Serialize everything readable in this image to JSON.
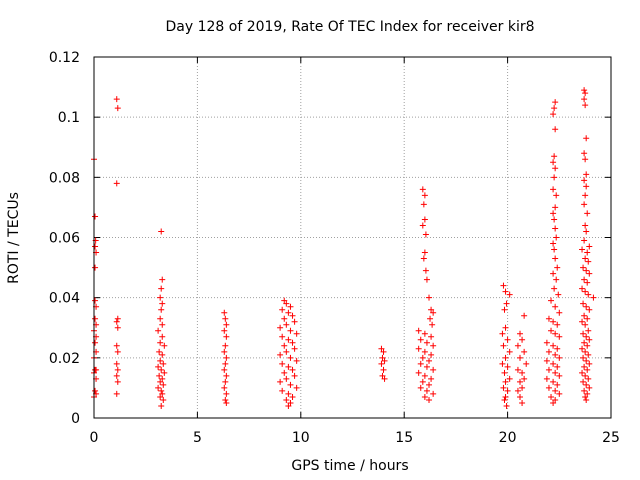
{
  "chart_data": {
    "type": "scatter",
    "title": "Day 128 of 2019, Rate Of TEC Index for receiver kir8",
    "xlabel": "GPS time / hours",
    "ylabel": "ROTI / TECUs",
    "xlim": [
      0,
      25
    ],
    "ylim": [
      0,
      0.12
    ],
    "xticks": [
      0,
      5,
      10,
      15,
      20,
      25
    ],
    "xtick_labels": [
      "0",
      "5",
      "10",
      "15",
      "20",
      "25"
    ],
    "yticks": [
      0,
      0.02,
      0.04,
      0.06,
      0.08,
      0.1,
      0.12
    ],
    "ytick_labels": [
      "0",
      "0.02",
      "0.04",
      "0.06",
      "0.08",
      "0.1",
      "0.12"
    ],
    "grid": true,
    "marker": "+",
    "marker_color": "#ff0000",
    "series": [
      {
        "name": "ROTI",
        "points": [
          [
            0.0,
            0.086
          ],
          [
            0.05,
            0.067
          ],
          [
            0.08,
            0.059
          ],
          [
            0.05,
            0.057
          ],
          [
            0.1,
            0.055
          ],
          [
            0.05,
            0.05
          ],
          [
            0.05,
            0.039
          ],
          [
            0.1,
            0.037
          ],
          [
            0.05,
            0.033
          ],
          [
            0.1,
            0.031
          ],
          [
            0.0,
            0.029
          ],
          [
            0.1,
            0.027
          ],
          [
            0.05,
            0.025
          ],
          [
            0.1,
            0.022
          ],
          [
            0.0,
            0.02
          ],
          [
            0.05,
            0.016
          ],
          [
            0.1,
            0.016
          ],
          [
            0.0,
            0.015
          ],
          [
            0.1,
            0.013
          ],
          [
            0.05,
            0.009
          ],
          [
            0.1,
            0.008
          ],
          [
            0.0,
            0.007
          ],
          [
            1.1,
            0.106
          ],
          [
            1.15,
            0.103
          ],
          [
            1.1,
            0.078
          ],
          [
            1.15,
            0.033
          ],
          [
            1.1,
            0.032
          ],
          [
            1.15,
            0.03
          ],
          [
            1.1,
            0.024
          ],
          [
            1.15,
            0.022
          ],
          [
            1.1,
            0.018
          ],
          [
            1.15,
            0.016
          ],
          [
            1.1,
            0.014
          ],
          [
            1.15,
            0.012
          ],
          [
            1.1,
            0.008
          ],
          [
            3.25,
            0.062
          ],
          [
            3.3,
            0.046
          ],
          [
            3.25,
            0.043
          ],
          [
            3.2,
            0.04
          ],
          [
            3.3,
            0.038
          ],
          [
            3.25,
            0.036
          ],
          [
            3.2,
            0.033
          ],
          [
            3.3,
            0.031
          ],
          [
            3.1,
            0.029
          ],
          [
            3.3,
            0.027
          ],
          [
            3.2,
            0.025
          ],
          [
            3.4,
            0.024
          ],
          [
            3.15,
            0.022
          ],
          [
            3.3,
            0.021
          ],
          [
            3.2,
            0.019
          ],
          [
            3.35,
            0.018
          ],
          [
            3.1,
            0.017
          ],
          [
            3.25,
            0.016
          ],
          [
            3.4,
            0.015
          ],
          [
            3.15,
            0.014
          ],
          [
            3.3,
            0.013
          ],
          [
            3.2,
            0.012
          ],
          [
            3.35,
            0.011
          ],
          [
            3.1,
            0.01
          ],
          [
            3.25,
            0.009
          ],
          [
            3.3,
            0.008
          ],
          [
            3.2,
            0.007
          ],
          [
            3.35,
            0.006
          ],
          [
            3.25,
            0.004
          ],
          [
            6.3,
            0.035
          ],
          [
            6.35,
            0.033
          ],
          [
            6.4,
            0.031
          ],
          [
            6.3,
            0.029
          ],
          [
            6.4,
            0.027
          ],
          [
            6.35,
            0.024
          ],
          [
            6.3,
            0.022
          ],
          [
            6.4,
            0.02
          ],
          [
            6.35,
            0.018
          ],
          [
            6.3,
            0.016
          ],
          [
            6.4,
            0.014
          ],
          [
            6.35,
            0.012
          ],
          [
            6.3,
            0.01
          ],
          [
            6.4,
            0.008
          ],
          [
            6.35,
            0.006
          ],
          [
            6.4,
            0.005
          ],
          [
            9.2,
            0.039
          ],
          [
            9.3,
            0.038
          ],
          [
            9.5,
            0.037
          ],
          [
            9.1,
            0.036
          ],
          [
            9.4,
            0.035
          ],
          [
            9.6,
            0.034
          ],
          [
            9.2,
            0.033
          ],
          [
            9.7,
            0.032
          ],
          [
            9.3,
            0.031
          ],
          [
            9.0,
            0.03
          ],
          [
            9.5,
            0.029
          ],
          [
            9.8,
            0.028
          ],
          [
            9.1,
            0.027
          ],
          [
            9.4,
            0.026
          ],
          [
            9.6,
            0.025
          ],
          [
            9.2,
            0.024
          ],
          [
            9.7,
            0.023
          ],
          [
            9.3,
            0.022
          ],
          [
            9.0,
            0.021
          ],
          [
            9.5,
            0.02
          ],
          [
            9.8,
            0.019
          ],
          [
            9.1,
            0.018
          ],
          [
            9.4,
            0.017
          ],
          [
            9.6,
            0.016
          ],
          [
            9.2,
            0.015
          ],
          [
            9.7,
            0.014
          ],
          [
            9.3,
            0.013
          ],
          [
            9.0,
            0.012
          ],
          [
            9.5,
            0.011
          ],
          [
            9.8,
            0.01
          ],
          [
            9.1,
            0.009
          ],
          [
            9.4,
            0.008
          ],
          [
            9.6,
            0.007
          ],
          [
            9.3,
            0.006
          ],
          [
            9.5,
            0.005
          ],
          [
            9.4,
            0.004
          ],
          [
            13.9,
            0.023
          ],
          [
            14.0,
            0.022
          ],
          [
            13.95,
            0.02
          ],
          [
            14.05,
            0.019
          ],
          [
            13.9,
            0.018
          ],
          [
            14.0,
            0.016
          ],
          [
            13.95,
            0.014
          ],
          [
            14.05,
            0.013
          ],
          [
            15.9,
            0.076
          ],
          [
            16.0,
            0.074
          ],
          [
            15.95,
            0.071
          ],
          [
            16.0,
            0.066
          ],
          [
            15.9,
            0.064
          ],
          [
            16.05,
            0.061
          ],
          [
            16.0,
            0.055
          ],
          [
            15.95,
            0.053
          ],
          [
            16.05,
            0.049
          ],
          [
            16.1,
            0.046
          ],
          [
            16.2,
            0.04
          ],
          [
            16.3,
            0.036
          ],
          [
            16.4,
            0.035
          ],
          [
            16.25,
            0.033
          ],
          [
            16.35,
            0.031
          ],
          [
            15.7,
            0.029
          ],
          [
            16.0,
            0.028
          ],
          [
            16.3,
            0.027
          ],
          [
            15.8,
            0.026
          ],
          [
            16.1,
            0.025
          ],
          [
            16.4,
            0.024
          ],
          [
            15.7,
            0.023
          ],
          [
            16.0,
            0.022
          ],
          [
            16.3,
            0.021
          ],
          [
            15.9,
            0.02
          ],
          [
            16.2,
            0.019
          ],
          [
            15.8,
            0.018
          ],
          [
            16.1,
            0.017
          ],
          [
            16.4,
            0.016
          ],
          [
            15.7,
            0.015
          ],
          [
            16.0,
            0.014
          ],
          [
            16.3,
            0.013
          ],
          [
            15.9,
            0.012
          ],
          [
            16.2,
            0.011
          ],
          [
            15.8,
            0.01
          ],
          [
            16.1,
            0.009
          ],
          [
            16.4,
            0.008
          ],
          [
            16.0,
            0.007
          ],
          [
            16.2,
            0.006
          ],
          [
            19.8,
            0.044
          ],
          [
            19.9,
            0.042
          ],
          [
            20.1,
            0.041
          ],
          [
            19.95,
            0.038
          ],
          [
            19.85,
            0.036
          ],
          [
            19.9,
            0.03
          ],
          [
            19.75,
            0.028
          ],
          [
            20.0,
            0.026
          ],
          [
            19.8,
            0.024
          ],
          [
            20.1,
            0.022
          ],
          [
            19.9,
            0.02
          ],
          [
            19.75,
            0.018
          ],
          [
            20.0,
            0.017
          ],
          [
            19.85,
            0.015
          ],
          [
            20.1,
            0.013
          ],
          [
            19.9,
            0.012
          ],
          [
            19.8,
            0.01
          ],
          [
            20.0,
            0.009
          ],
          [
            19.9,
            0.007
          ],
          [
            19.85,
            0.006
          ],
          [
            19.95,
            0.004
          ],
          [
            20.8,
            0.034
          ],
          [
            20.6,
            0.028
          ],
          [
            20.7,
            0.026
          ],
          [
            20.5,
            0.024
          ],
          [
            20.8,
            0.022
          ],
          [
            20.6,
            0.02
          ],
          [
            20.9,
            0.018
          ],
          [
            20.5,
            0.016
          ],
          [
            20.7,
            0.015
          ],
          [
            20.8,
            0.013
          ],
          [
            20.6,
            0.012
          ],
          [
            20.7,
            0.01
          ],
          [
            20.5,
            0.009
          ],
          [
            20.6,
            0.007
          ],
          [
            20.7,
            0.005
          ],
          [
            22.3,
            0.105
          ],
          [
            22.25,
            0.103
          ],
          [
            22.2,
            0.101
          ],
          [
            22.3,
            0.096
          ],
          [
            22.25,
            0.087
          ],
          [
            22.2,
            0.085
          ],
          [
            22.3,
            0.083
          ],
          [
            22.25,
            0.08
          ],
          [
            22.2,
            0.076
          ],
          [
            22.35,
            0.074
          ],
          [
            22.3,
            0.07
          ],
          [
            22.2,
            0.068
          ],
          [
            22.25,
            0.066
          ],
          [
            22.3,
            0.063
          ],
          [
            22.35,
            0.06
          ],
          [
            22.2,
            0.058
          ],
          [
            22.25,
            0.056
          ],
          [
            22.3,
            0.053
          ],
          [
            22.4,
            0.05
          ],
          [
            22.2,
            0.048
          ],
          [
            22.35,
            0.046
          ],
          [
            22.25,
            0.043
          ],
          [
            22.45,
            0.041
          ],
          [
            22.1,
            0.039
          ],
          [
            22.3,
            0.037
          ],
          [
            22.5,
            0.035
          ],
          [
            22.0,
            0.033
          ],
          [
            22.2,
            0.032
          ],
          [
            22.4,
            0.031
          ],
          [
            22.1,
            0.029
          ],
          [
            22.3,
            0.028
          ],
          [
            22.5,
            0.027
          ],
          [
            21.9,
            0.025
          ],
          [
            22.2,
            0.024
          ],
          [
            22.4,
            0.023
          ],
          [
            22.0,
            0.022
          ],
          [
            22.3,
            0.021
          ],
          [
            22.5,
            0.02
          ],
          [
            21.9,
            0.019
          ],
          [
            22.2,
            0.018
          ],
          [
            22.4,
            0.017
          ],
          [
            22.0,
            0.016
          ],
          [
            22.3,
            0.015
          ],
          [
            22.5,
            0.014
          ],
          [
            21.9,
            0.013
          ],
          [
            22.2,
            0.012
          ],
          [
            22.4,
            0.011
          ],
          [
            22.0,
            0.01
          ],
          [
            22.3,
            0.009
          ],
          [
            22.5,
            0.008
          ],
          [
            22.1,
            0.007
          ],
          [
            22.3,
            0.006
          ],
          [
            22.2,
            0.005
          ],
          [
            23.7,
            0.109
          ],
          [
            23.75,
            0.108
          ],
          [
            23.7,
            0.106
          ],
          [
            23.75,
            0.104
          ],
          [
            23.8,
            0.093
          ],
          [
            23.7,
            0.088
          ],
          [
            23.75,
            0.086
          ],
          [
            23.8,
            0.081
          ],
          [
            23.7,
            0.079
          ],
          [
            23.8,
            0.077
          ],
          [
            23.75,
            0.074
          ],
          [
            23.7,
            0.071
          ],
          [
            23.85,
            0.068
          ],
          [
            23.75,
            0.064
          ],
          [
            23.8,
            0.062
          ],
          [
            23.7,
            0.059
          ],
          [
            23.95,
            0.057
          ],
          [
            23.6,
            0.056
          ],
          [
            23.85,
            0.055
          ],
          [
            23.75,
            0.053
          ],
          [
            23.9,
            0.052
          ],
          [
            23.65,
            0.05
          ],
          [
            23.8,
            0.049
          ],
          [
            23.95,
            0.048
          ],
          [
            23.7,
            0.046
          ],
          [
            23.85,
            0.045
          ],
          [
            23.6,
            0.043
          ],
          [
            23.75,
            0.042
          ],
          [
            23.9,
            0.041
          ],
          [
            24.15,
            0.04
          ],
          [
            23.65,
            0.038
          ],
          [
            23.8,
            0.037
          ],
          [
            23.95,
            0.036
          ],
          [
            23.7,
            0.034
          ],
          [
            23.85,
            0.033
          ],
          [
            23.6,
            0.032
          ],
          [
            23.75,
            0.031
          ],
          [
            23.9,
            0.029
          ],
          [
            23.65,
            0.028
          ],
          [
            23.8,
            0.027
          ],
          [
            23.95,
            0.026
          ],
          [
            23.7,
            0.025
          ],
          [
            23.85,
            0.024
          ],
          [
            23.6,
            0.023
          ],
          [
            23.75,
            0.022
          ],
          [
            23.9,
            0.021
          ],
          [
            23.65,
            0.02
          ],
          [
            23.8,
            0.019
          ],
          [
            23.95,
            0.018
          ],
          [
            23.7,
            0.017
          ],
          [
            23.85,
            0.016
          ],
          [
            23.6,
            0.015
          ],
          [
            23.75,
            0.014
          ],
          [
            23.9,
            0.013
          ],
          [
            23.65,
            0.012
          ],
          [
            23.8,
            0.011
          ],
          [
            23.95,
            0.01
          ],
          [
            23.7,
            0.009
          ],
          [
            23.85,
            0.008
          ],
          [
            23.75,
            0.007
          ],
          [
            23.8,
            0.006
          ]
        ]
      }
    ]
  }
}
